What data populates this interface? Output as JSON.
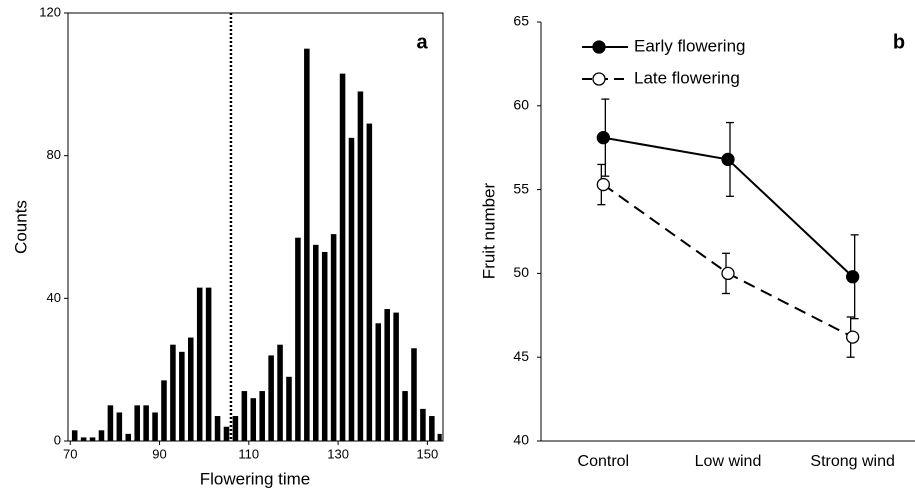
{
  "chart_data": [
    {
      "type": "histogram",
      "annotation": "a",
      "xlabel": "Flowering time",
      "ylabel": "Counts",
      "bins": [
        70,
        72,
        74,
        76,
        78,
        80,
        82,
        84,
        86,
        88,
        90,
        92,
        94,
        96,
        98,
        100,
        102,
        104,
        106,
        108,
        110,
        112,
        114,
        116,
        118,
        120,
        122,
        124,
        126,
        128,
        130,
        132,
        134,
        136,
        138,
        140,
        142,
        144,
        146,
        148,
        150,
        152,
        154
      ],
      "counts": [
        3,
        1,
        1,
        3,
        10,
        8,
        2,
        10,
        10,
        8,
        17,
        27,
        25,
        29,
        43,
        43,
        7,
        4,
        7,
        14,
        12,
        14,
        24,
        27,
        18,
        57,
        110,
        55,
        53,
        58,
        103,
        85,
        98,
        89,
        33,
        37,
        36,
        14,
        26,
        9,
        7,
        2
      ],
      "color": "#000000",
      "vline": 106,
      "xlim": [
        69.5,
        153.5
      ],
      "ylim": [
        0,
        120
      ],
      "xticks": [
        70,
        90,
        110,
        130,
        150
      ],
      "yticks": [
        0,
        40,
        80,
        120
      ]
    },
    {
      "type": "line",
      "annotation": "b",
      "ylabel": "Fruit number",
      "categories": [
        "Control",
        "Low wind",
        "Strong wind"
      ],
      "series": [
        {
          "name": "Early flowering",
          "color": "#000000",
          "marker": "filled",
          "dash": false,
          "values": [
            58.1,
            56.8,
            49.8
          ],
          "errors": [
            2.3,
            2.2,
            2.5
          ]
        },
        {
          "name": "Late flowering",
          "color": "#000000",
          "marker": "open",
          "dash": true,
          "values": [
            55.3,
            50.0,
            46.2
          ],
          "errors": [
            1.2,
            1.2,
            1.2
          ]
        }
      ],
      "ylim": [
        40,
        65
      ],
      "yticks": [
        40,
        45,
        50,
        55,
        60,
        65
      ],
      "legend": "top-left"
    }
  ]
}
